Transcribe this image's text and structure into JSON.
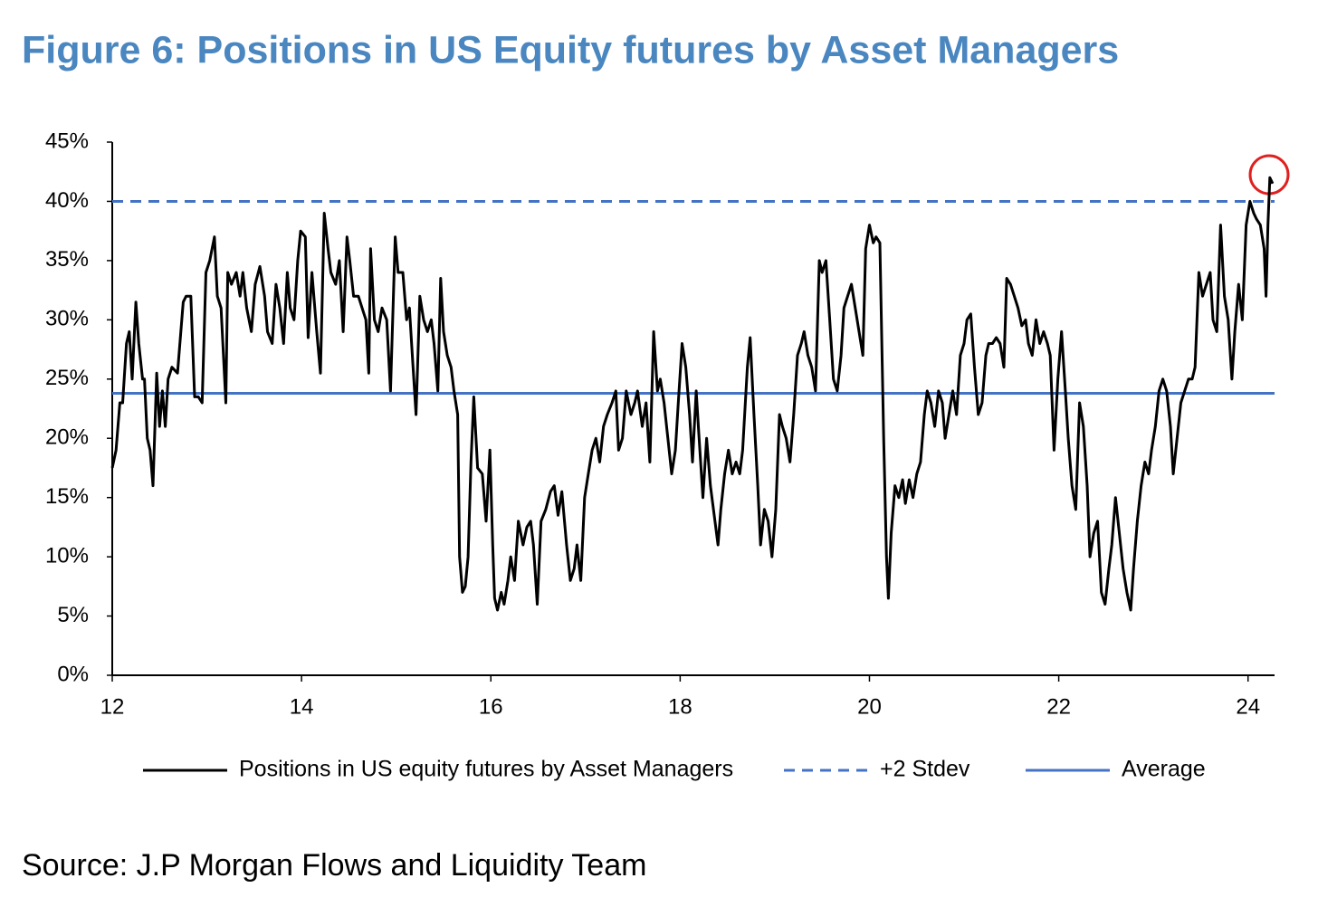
{
  "chart_data": {
    "type": "line",
    "title": "Figure 6: Positions in US Equity futures by Asset Managers",
    "source": "Source: J.P Morgan Flows and Liquidity Team",
    "xlim": [
      12,
      24.28
    ],
    "xticks": [
      12,
      14,
      16,
      18,
      20,
      22,
      24
    ],
    "ylim": [
      0,
      45
    ],
    "yticks": [
      {
        "value": 0,
        "label": "0%"
      },
      {
        "value": 5,
        "label": "5%"
      },
      {
        "value": 10,
        "label": "10%"
      },
      {
        "value": 15,
        "label": "15%"
      },
      {
        "value": 20,
        "label": "20%"
      },
      {
        "value": 25,
        "label": "25%"
      },
      {
        "value": 30,
        "label": "30%"
      },
      {
        "value": 35,
        "label": "35%"
      },
      {
        "value": 40,
        "label": "40%"
      },
      {
        "value": 45,
        "label": "45%"
      }
    ],
    "x": [
      12.0,
      12.04,
      12.08,
      12.11,
      12.15,
      12.18,
      12.21,
      12.25,
      12.28,
      12.32,
      12.34,
      12.37,
      12.4,
      12.43,
      12.47,
      12.5,
      12.53,
      12.56,
      12.59,
      12.63,
      12.69,
      12.75,
      12.78,
      12.83,
      12.87,
      12.91,
      12.95,
      12.99,
      13.03,
      13.08,
      13.11,
      13.15,
      13.2,
      13.22,
      13.26,
      13.31,
      13.35,
      13.38,
      13.42,
      13.47,
      13.51,
      13.56,
      13.61,
      13.64,
      13.69,
      13.73,
      13.77,
      13.81,
      13.85,
      13.88,
      13.92,
      13.96,
      13.99,
      14.04,
      14.07,
      14.11,
      14.16,
      14.2,
      14.24,
      14.28,
      14.31,
      14.36,
      14.4,
      14.44,
      14.48,
      14.51,
      14.55,
      14.6,
      14.64,
      14.68,
      14.71,
      14.73,
      14.77,
      14.81,
      14.85,
      14.9,
      14.94,
      14.99,
      15.02,
      15.07,
      15.11,
      15.14,
      15.17,
      15.21,
      15.25,
      15.29,
      15.33,
      15.37,
      15.4,
      15.44,
      15.47,
      15.5,
      15.54,
      15.58,
      15.61,
      15.65,
      15.67,
      15.7,
      15.73,
      15.76,
      15.79,
      15.82,
      15.86,
      15.91,
      15.95,
      15.99,
      16.02,
      16.04,
      16.07,
      16.11,
      16.14,
      16.18,
      16.21,
      16.25,
      16.29,
      16.34,
      16.38,
      16.42,
      16.45,
      16.49,
      16.53,
      16.58,
      16.63,
      16.67,
      16.71,
      16.75,
      16.8,
      16.84,
      16.88,
      16.91,
      16.95,
      16.99,
      17.03,
      17.07,
      17.11,
      17.15,
      17.19,
      17.23,
      17.28,
      17.32,
      17.35,
      17.39,
      17.43,
      17.48,
      17.52,
      17.55,
      17.6,
      17.64,
      17.68,
      17.72,
      17.76,
      17.79,
      17.83,
      17.87,
      17.91,
      17.95,
      17.98,
      18.02,
      18.06,
      18.1,
      18.13,
      18.17,
      18.2,
      18.24,
      18.28,
      18.32,
      18.36,
      18.4,
      18.43,
      18.47,
      18.51,
      18.55,
      18.59,
      18.63,
      18.66,
      18.71,
      18.74,
      18.78,
      18.82,
      18.85,
      18.89,
      18.93,
      18.97,
      19.01,
      19.05,
      19.08,
      19.12,
      19.16,
      19.2,
      19.24,
      19.28,
      19.31,
      19.35,
      19.39,
      19.43,
      19.47,
      19.5,
      19.54,
      19.58,
      19.62,
      19.66,
      19.7,
      19.73,
      19.77,
      19.81,
      19.85,
      19.89,
      19.93,
      19.96,
      20.0,
      20.04,
      20.07,
      20.11,
      20.15,
      20.18,
      20.2,
      20.23,
      20.27,
      20.31,
      20.35,
      20.38,
      20.42,
      20.46,
      20.5,
      20.54,
      20.58,
      20.61,
      20.65,
      20.69,
      20.73,
      20.77,
      20.8,
      20.84,
      20.88,
      20.92,
      20.96,
      21.0,
      21.03,
      21.07,
      21.11,
      21.15,
      21.19,
      21.23,
      21.26,
      21.3,
      21.34,
      21.38,
      21.42,
      21.45,
      21.49,
      21.53,
      21.57,
      21.61,
      21.65,
      21.68,
      21.72,
      21.76,
      21.8,
      21.84,
      21.88,
      21.91,
      21.95,
      21.99,
      22.03,
      22.07,
      22.1,
      22.14,
      22.18,
      22.22,
      22.26,
      22.3,
      22.33,
      22.37,
      22.41,
      22.45,
      22.49,
      22.53,
      22.56,
      22.6,
      22.64,
      22.68,
      22.72,
      22.76,
      22.79,
      22.83,
      22.87,
      22.91,
      22.95,
      22.98,
      23.02,
      23.06,
      23.1,
      23.14,
      23.18,
      23.21,
      23.25,
      23.29,
      23.33,
      23.37,
      23.41,
      23.44,
      23.48,
      23.52,
      23.56,
      23.6,
      23.63,
      23.67,
      23.71,
      23.75,
      23.79,
      23.83,
      23.86,
      23.9,
      23.94,
      23.98,
      24.02,
      24.06,
      24.09,
      24.13,
      24.17,
      24.19,
      24.21,
      24.23,
      24.26
    ],
    "series": [
      {
        "name": "Positions in US equity futures by Asset Managers",
        "color": "#000000",
        "values": [
          17.5,
          19,
          23,
          23,
          28,
          29,
          25,
          31.5,
          28,
          25,
          25,
          20,
          19,
          16,
          25.5,
          21,
          24,
          21,
          25,
          26,
          25.5,
          31.5,
          32,
          32,
          23.5,
          23.5,
          23,
          34,
          35,
          37,
          32,
          31,
          23,
          34,
          33,
          34,
          32,
          34,
          31,
          29,
          33,
          34.5,
          32,
          29,
          28,
          33,
          31,
          28,
          34,
          31,
          30,
          35,
          37.5,
          37,
          28.5,
          34,
          29,
          25.5,
          39,
          36,
          34,
          33,
          35,
          29,
          37,
          35,
          32,
          32,
          31,
          30,
          25.5,
          36,
          30,
          29,
          31,
          30,
          24,
          37,
          34,
          34,
          30,
          31,
          27,
          22,
          32,
          30,
          29,
          30,
          28,
          24,
          33.5,
          29,
          27,
          26,
          24,
          22,
          10,
          7,
          7.5,
          10,
          18,
          23.5,
          17.5,
          17,
          13,
          19,
          11,
          6.5,
          5.5,
          7,
          6,
          8,
          10,
          8,
          13,
          11,
          12.5,
          13,
          11,
          6,
          13,
          14,
          15.5,
          16,
          13.5,
          15.5,
          11,
          8,
          9,
          11,
          8,
          15,
          17,
          19,
          20,
          18,
          21,
          22,
          23,
          24,
          19,
          20,
          24,
          22,
          23,
          24,
          21,
          23,
          18,
          29,
          24,
          25,
          23,
          20,
          17,
          19,
          23,
          28,
          26,
          22,
          18,
          24,
          20,
          15,
          20,
          16,
          13.5,
          11,
          14,
          17,
          19,
          17,
          18,
          17,
          19,
          26,
          28.5,
          22,
          16,
          11,
          14,
          13,
          10,
          14,
          22,
          21,
          20,
          18,
          22,
          27,
          28,
          29,
          27,
          26,
          24,
          35,
          34,
          35,
          30,
          25,
          24,
          27,
          31,
          32,
          33,
          31,
          29,
          27,
          36,
          38,
          36.5,
          37,
          36.5,
          20,
          10,
          6.5,
          12,
          16,
          15,
          16.5,
          14.5,
          16.5,
          15,
          17,
          18,
          22,
          24,
          23,
          21,
          24,
          23,
          20,
          22,
          24,
          22,
          27,
          28,
          30,
          30.5,
          26,
          22,
          23,
          27,
          28,
          28,
          28.5,
          28,
          26,
          33.5,
          33,
          32,
          31,
          29.5,
          30,
          28,
          27,
          30,
          28,
          29,
          28,
          27,
          19,
          25,
          29,
          24,
          20,
          16,
          14,
          23,
          21,
          16,
          10,
          12,
          13,
          7,
          6,
          9,
          11,
          15,
          12,
          9,
          7,
          5.5,
          9,
          13,
          16,
          18,
          17,
          19,
          21,
          24,
          25,
          24,
          21,
          17,
          20,
          23,
          24,
          25,
          25,
          26,
          34,
          32,
          33,
          34,
          30,
          29,
          38,
          32,
          30,
          25,
          29,
          33,
          30,
          38,
          40,
          39,
          38.5,
          38,
          36,
          32,
          38,
          42,
          41.5
        ]
      }
    ],
    "reference_lines": [
      {
        "name": "+2 Stdev",
        "value": 40,
        "color": "#4472c4",
        "dashed": true
      },
      {
        "name": "Average",
        "value": 23.8,
        "color": "#4472c4",
        "dashed": false
      }
    ]
  }
}
